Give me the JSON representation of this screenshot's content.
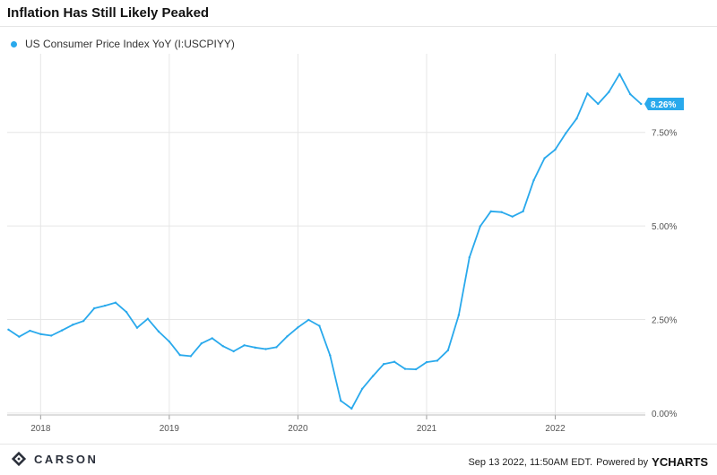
{
  "title": "Inflation Has Still Likely Peaked",
  "legend": {
    "label": "US Consumer Price Index YoY (I:USCPIYY)"
  },
  "colors": {
    "series": "#29a9ec",
    "grid": "#e6e6e6",
    "axis_text": "#555555"
  },
  "footer": {
    "logo_text": "CARSON",
    "timestamp": "Sep 13 2022, 11:50AM EDT.",
    "powered_by": "Powered by",
    "brand": "YCHARTS"
  },
  "chart_data": {
    "type": "line",
    "title": "Inflation Has Still Likely Peaked",
    "xlabel": "",
    "ylabel": "",
    "ylim": [
      -0.05,
      9.6
    ],
    "xlim": [
      2017.74,
      2022.7
    ],
    "y_ticks": [
      0.0,
      2.5,
      5.0,
      7.5
    ],
    "y_tick_labels": [
      "0.00%",
      "2.50%",
      "5.00%",
      "7.50%"
    ],
    "x_ticks": [
      2018,
      2019,
      2020,
      2021,
      2022
    ],
    "x_tick_labels": [
      "2018",
      "2019",
      "2020",
      "2021",
      "2022"
    ],
    "grid": true,
    "legend_position": "top-left",
    "last_value_label": "8.26%",
    "series": [
      {
        "name": "US Consumer Price Index YoY (I:USCPIYY)",
        "x": [
          2017.75,
          2017.833,
          2017.917,
          2018.0,
          2018.083,
          2018.167,
          2018.25,
          2018.333,
          2018.417,
          2018.5,
          2018.583,
          2018.667,
          2018.75,
          2018.833,
          2018.917,
          2019.0,
          2019.083,
          2019.167,
          2019.25,
          2019.333,
          2019.417,
          2019.5,
          2019.583,
          2019.667,
          2019.75,
          2019.833,
          2019.917,
          2020.0,
          2020.083,
          2020.167,
          2020.25,
          2020.333,
          2020.417,
          2020.5,
          2020.583,
          2020.667,
          2020.75,
          2020.833,
          2020.917,
          2021.0,
          2021.083,
          2021.167,
          2021.25,
          2021.333,
          2021.417,
          2021.5,
          2021.583,
          2021.667,
          2021.75,
          2021.833,
          2021.917,
          2022.0,
          2022.083,
          2022.167,
          2022.25,
          2022.333,
          2022.417,
          2022.5,
          2022.583,
          2022.667
        ],
        "values": [
          2.23,
          2.04,
          2.2,
          2.11,
          2.07,
          2.21,
          2.36,
          2.46,
          2.8,
          2.87,
          2.95,
          2.7,
          2.28,
          2.52,
          2.18,
          1.91,
          1.55,
          1.52,
          1.86,
          2.0,
          1.79,
          1.65,
          1.81,
          1.75,
          1.71,
          1.76,
          2.05,
          2.29,
          2.49,
          2.33,
          1.54,
          0.33,
          0.12,
          0.65,
          0.99,
          1.31,
          1.37,
          1.18,
          1.17,
          1.36,
          1.4,
          1.68,
          2.62,
          4.16,
          4.99,
          5.39,
          5.37,
          5.25,
          5.39,
          6.22,
          6.81,
          7.04,
          7.48,
          7.87,
          8.54,
          8.26,
          8.58,
          9.06,
          8.52,
          8.26
        ]
      }
    ]
  }
}
